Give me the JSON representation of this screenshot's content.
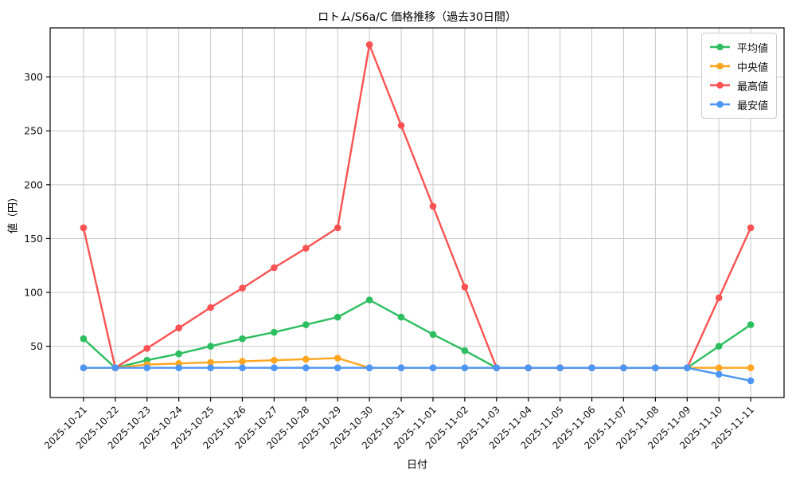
{
  "chart_data": {
    "type": "line",
    "title": "ロトム/S6a/C 価格推移（過去30日間）",
    "xlabel": "日付",
    "ylabel": "値（円）",
    "x": [
      "2025-10-21",
      "2025-10-22",
      "2025-10-23",
      "2025-10-24",
      "2025-10-25",
      "2025-10-26",
      "2025-10-27",
      "2025-10-28",
      "2025-10-29",
      "2025-10-30",
      "2025-10-31",
      "2025-11-01",
      "2025-11-02",
      "2025-11-03",
      "2025-11-04",
      "2025-11-05",
      "2025-11-06",
      "2025-11-07",
      "2025-11-08",
      "2025-11-09",
      "2025-11-10",
      "2025-11-11"
    ],
    "series": [
      {
        "key": "average",
        "name": "平均値",
        "color": "#2dbe60",
        "values": [
          57,
          30,
          37,
          43,
          50,
          57,
          63,
          70,
          77,
          93,
          77,
          61,
          46,
          30,
          30,
          30,
          30,
          30,
          30,
          30,
          50,
          70
        ]
      },
      {
        "key": "median",
        "name": "中央値",
        "color": "#ffa620",
        "values": [
          30,
          30,
          33,
          34,
          35,
          36,
          37,
          38,
          39,
          30,
          30,
          30,
          30,
          30,
          30,
          30,
          30,
          30,
          30,
          30,
          30,
          30
        ]
      },
      {
        "key": "max",
        "name": "最高値",
        "color": "#fa5252",
        "values": [
          160,
          30,
          48,
          67,
          86,
          104,
          123,
          141,
          160,
          330,
          255,
          180,
          105,
          30,
          30,
          30,
          30,
          30,
          30,
          30,
          95,
          160
        ]
      },
      {
        "key": "min",
        "name": "最安値",
        "color": "#4d96f5",
        "values": [
          30,
          30,
          30,
          30,
          30,
          30,
          30,
          30,
          30,
          30,
          30,
          30,
          30,
          30,
          30,
          30,
          30,
          30,
          30,
          30,
          24,
          18
        ]
      }
    ],
    "yticks": [
      50,
      100,
      150,
      200,
      250,
      300
    ],
    "ylim": [
      2.4,
      345.6
    ],
    "xlim": [
      -1.05,
      22.05
    ],
    "grid": true,
    "legend_position": "upper right",
    "grid_color": "#c8c8c8",
    "axis_color": "#000000",
    "background": "#ffffff"
  }
}
